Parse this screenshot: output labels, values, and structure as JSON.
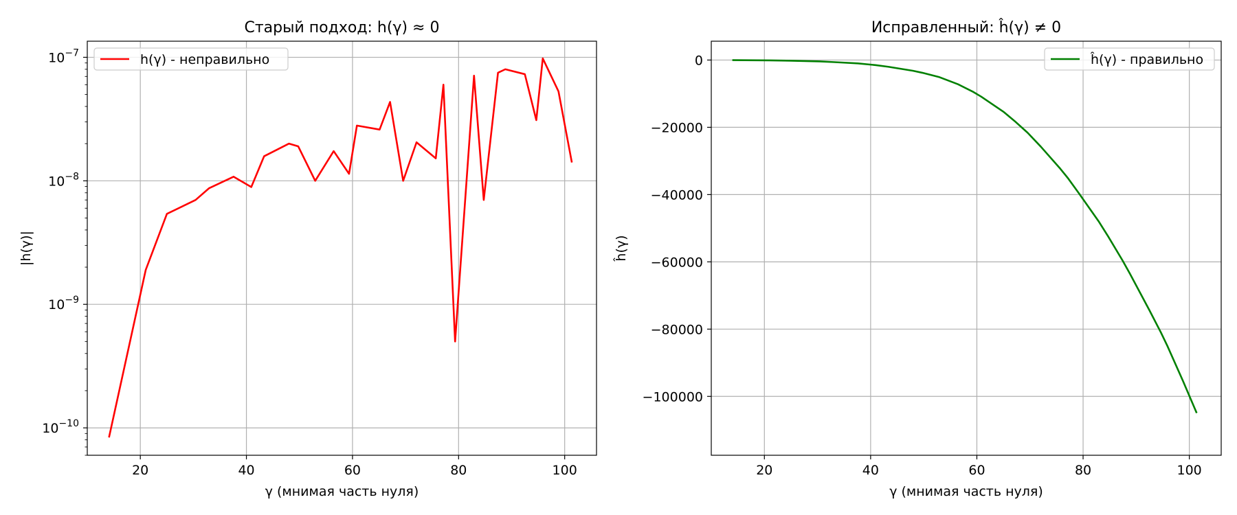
{
  "chart_data": [
    {
      "type": "line",
      "title": "Старый подход: h(γ) ≈ 0",
      "xlabel": "γ (мнимая часть нуля)",
      "ylabel": "|h(γ)|",
      "yscale": "log",
      "xlim": [
        10,
        106
      ],
      "ylim": [
        6e-11,
        1.35e-07
      ],
      "xticks": [
        20,
        40,
        60,
        80,
        100
      ],
      "xtick_labels": [
        "20",
        "40",
        "60",
        "80",
        "100"
      ],
      "yticks": [
        1e-10,
        1e-09,
        1e-08,
        1e-07
      ],
      "ytick_labels": [
        {
          "base": "10",
          "exp": "−10"
        },
        {
          "base": "10",
          "exp": "−9"
        },
        {
          "base": "10",
          "exp": "−8"
        },
        {
          "base": "10",
          "exp": "−7"
        }
      ],
      "grid": true,
      "legend_loc": "upper left",
      "series": [
        {
          "name": "h(γ) - неправильно",
          "color": "#ff0000",
          "x": [
            14.13,
            21.02,
            25.01,
            30.42,
            32.94,
            37.59,
            40.92,
            43.33,
            48.01,
            49.77,
            52.97,
            56.45,
            59.35,
            60.83,
            65.11,
            67.08,
            69.55,
            72.07,
            75.7,
            77.14,
            79.34,
            82.91,
            84.74,
            87.43,
            88.81,
            92.49,
            94.65,
            95.87,
            98.83,
            101.32
          ],
          "y": [
            8.5e-11,
            1.9e-09,
            5.4e-09,
            7e-09,
            8.7e-09,
            1.08e-08,
            8.9e-09,
            1.58e-08,
            2e-08,
            1.9e-08,
            1e-08,
            1.74e-08,
            1.14e-08,
            2.8e-08,
            2.6e-08,
            4.35e-08,
            1e-08,
            2.05e-08,
            1.52e-08,
            6e-08,
            5e-10,
            7.1e-08,
            7e-09,
            7.5e-08,
            8e-08,
            7.3e-08,
            3.1e-08,
            9.8e-08,
            5.3e-08,
            1.43e-08
          ]
        }
      ]
    },
    {
      "type": "line",
      "title": "Исправленный: ĥ(γ) ≠ 0",
      "xlabel": "γ (мнимая часть нуля)",
      "ylabel": "ĥ(γ)",
      "yscale": "linear",
      "xlim": [
        10,
        106
      ],
      "ylim": [
        -117500,
        5600
      ],
      "xticks": [
        20,
        40,
        60,
        80,
        100
      ],
      "xtick_labels": [
        "20",
        "40",
        "60",
        "80",
        "100"
      ],
      "yticks": [
        0,
        -20000,
        -40000,
        -60000,
        -80000,
        -100000
      ],
      "ytick_labels": [
        "0",
        "−20000",
        "−40000",
        "−60000",
        "−80000",
        "−100000"
      ],
      "grid": true,
      "legend_loc": "upper right",
      "series": [
        {
          "name": "ĥ(γ) - правильно",
          "color": "#008000",
          "x": [
            14.13,
            21.02,
            25.01,
            30.42,
            32.94,
            37.59,
            40.92,
            43.33,
            48.01,
            49.77,
            52.97,
            56.45,
            59.35,
            60.83,
            65.11,
            67.08,
            69.55,
            72.07,
            75.7,
            77.14,
            79.34,
            82.91,
            84.74,
            87.43,
            88.81,
            92.49,
            94.65,
            95.87,
            98.83,
            101.32
          ],
          "y": [
            -20,
            -100,
            -200,
            -400,
            -600,
            -1000,
            -1500,
            -2000,
            -3200,
            -3800,
            -5100,
            -7200,
            -9500,
            -10900,
            -15500,
            -18100,
            -21600,
            -25800,
            -32300,
            -35100,
            -39900,
            -47900,
            -52500,
            -59600,
            -63500,
            -74400,
            -81000,
            -85000,
            -95500,
            -104700
          ]
        }
      ]
    }
  ]
}
